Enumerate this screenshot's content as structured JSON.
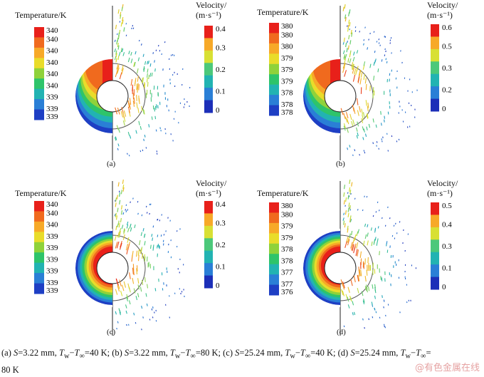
{
  "panels": [
    {
      "id": "a",
      "label": "(a)",
      "temp_title": "Temperature/K",
      "temp_ticks": [
        "340",
        "340",
        "340",
        "340",
        "340",
        "340",
        "339",
        "339",
        "339"
      ],
      "vel_title_1": "Velocity/",
      "vel_title_2": "(m·s⁻¹)",
      "vel_ticks": [
        "0.4",
        "0.3",
        "0.2",
        "0.1",
        "0"
      ],
      "vel_max": 0.4,
      "style": "hot"
    },
    {
      "id": "b",
      "label": "(b)",
      "temp_title": "Temperature/K",
      "temp_ticks": [
        "380",
        "380",
        "380",
        "379",
        "379",
        "379",
        "378",
        "378",
        "378"
      ],
      "vel_title_1": "Velocity/",
      "vel_title_2": "(m·s⁻¹)",
      "vel_ticks": [
        "0.6",
        "0.5",
        "0.3",
        "0.2",
        "0"
      ],
      "vel_max": 0.6,
      "style": "hot"
    },
    {
      "id": "c",
      "label": "(c)",
      "temp_title": "Temperature/K",
      "temp_ticks": [
        "340",
        "340",
        "340",
        "339",
        "339",
        "339",
        "339",
        "339",
        "339"
      ],
      "vel_title_1": "Velocity/",
      "vel_title_2": "(m·s⁻¹)",
      "vel_ticks": [
        "0.4",
        "0.3",
        "0.2",
        "0.1",
        "0"
      ],
      "vel_max": 0.4,
      "style": "ring"
    },
    {
      "id": "d",
      "label": "(d)",
      "temp_title": "Temperature/K",
      "temp_ticks": [
        "380",
        "380",
        "379",
        "379",
        "378",
        "378",
        "377",
        "377",
        "376"
      ],
      "vel_title_1": "Velocity/",
      "vel_title_2": "(m·s⁻¹)",
      "vel_ticks": [
        "0.5",
        "0.4",
        "0.3",
        "0.1",
        "0"
      ],
      "vel_max": 0.5,
      "style": "ring"
    }
  ],
  "caption": {
    "a_prefix": "(a) ",
    "a_s": "S",
    "a_mid": "=3.22 mm, ",
    "a_t": "T",
    "a_w": "w",
    "a_dash": "−",
    "a_t2": "T",
    "a_inf": "∞",
    "a_end": "=40 K; ",
    "b_prefix": "(b) ",
    "b_s": "S",
    "b_mid": "=3.22 mm, ",
    "b_t": "T",
    "b_w": "w",
    "b_dash": "−",
    "b_t2": "T",
    "b_inf": "∞",
    "b_end": "=80 K; ",
    "c_prefix": "(c) ",
    "c_s": "S",
    "c_mid": "=25.24 mm, ",
    "c_t": "T",
    "c_w": "w",
    "c_dash": "−",
    "c_t2": "T",
    "c_inf": "∞",
    "c_end": "=40 K; ",
    "d_prefix": "(d) ",
    "d_s": "S",
    "d_mid": "=25.24 mm, ",
    "d_t": "T",
    "d_w": "w",
    "d_dash": "−",
    "d_t2": "T",
    "d_inf": "∞",
    "d_end": "=",
    "line2": "80 K"
  },
  "watermark": "@有色金属在线",
  "colors": {
    "temp_scale": [
      "#e8201a",
      "#f06a1e",
      "#f7a928",
      "#e9dc2a",
      "#8fd23a",
      "#2ec46a",
      "#22b3b2",
      "#2a7fd6",
      "#1e3fc4"
    ],
    "vel_scale": [
      "#e8201a",
      "#f7a928",
      "#d8e034",
      "#4cc87a",
      "#22b3b2",
      "#2a7fd6",
      "#1c2fb8"
    ]
  }
}
